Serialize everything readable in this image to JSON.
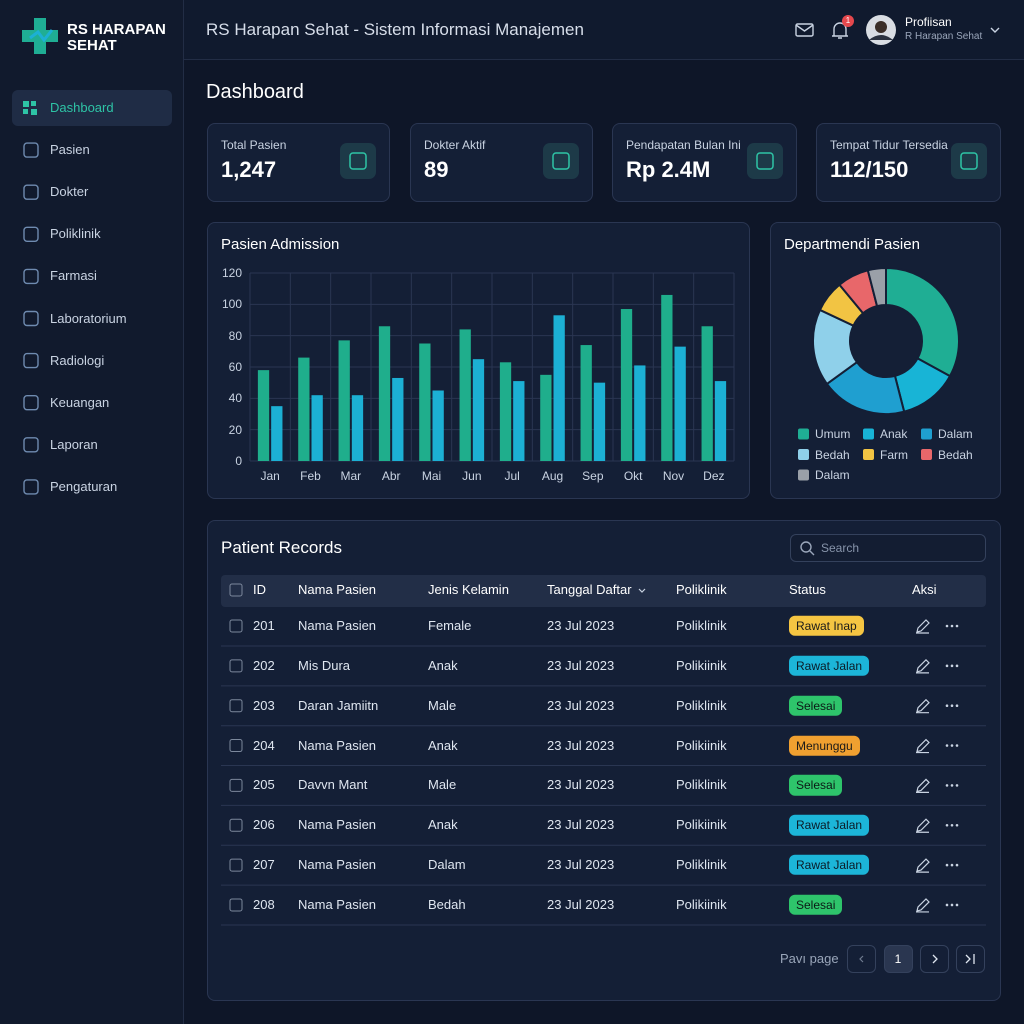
{
  "brand": "RS HARAPAN SEHAT",
  "header": {
    "title": "RS Harapan Sehat - Sistem Informasi Manajemen",
    "notifications": 1,
    "user_name": "Profiisan",
    "user_org": "R Harapan Sehat"
  },
  "nav": [
    "Dashboard",
    "Pasien",
    "Dokter",
    "Poliklinik",
    "Farmasi",
    "Laboratorium",
    "Radiologi",
    "Keuangan",
    "Laporan",
    "Pengaturan"
  ],
  "page_title": "Dashboard",
  "stats": [
    {
      "label": "Total Pasien",
      "value": "1,247"
    },
    {
      "label": "Dokter Aktif",
      "value": "89"
    },
    {
      "label": "Pendapatan Bulan Ini",
      "value": "Rp 2.4M"
    },
    {
      "label": "Tempat Tidur Tersedia",
      "value": "112/150"
    }
  ],
  "chart_data": [
    {
      "type": "bar",
      "title": "Pasien Admission",
      "categories": [
        "Jan",
        "Feb",
        "Mar",
        "Abr",
        "Mai",
        "Jun",
        "Jul",
        "Aug",
        "Sep",
        "Okt",
        "Nov",
        "Dez"
      ],
      "series": [
        {
          "color": "#1fae8c",
          "values": [
            58,
            66,
            77,
            86,
            75,
            84,
            63,
            55,
            74,
            97,
            106,
            86
          ]
        },
        {
          "color": "#1cb0d4",
          "values": [
            35,
            42,
            42,
            53,
            45,
            65,
            51,
            93,
            50,
            61,
            73,
            51
          ]
        }
      ],
      "ylim": [
        0,
        120
      ],
      "yticks": [
        0,
        20,
        40,
        60,
        80,
        100,
        120
      ],
      "grid": true
    },
    {
      "type": "pie",
      "title": "Departmendi Pasien",
      "categories": [
        "Umum",
        "Anak",
        "Dalam",
        "Bedah",
        "Farm",
        "Bedah",
        "Dalam"
      ],
      "values": [
        33,
        13,
        19,
        17,
        7,
        7,
        4
      ],
      "colors": [
        "#1fae94",
        "#18b4d6",
        "#1f9fd0",
        "#8fd0ea",
        "#f2c443",
        "#e8676a",
        "#9aa0a8"
      ],
      "legend": "bottom"
    }
  ],
  "table": {
    "title": "Patient Records",
    "search_placeholder": "Search",
    "columns": [
      "ID",
      "Nama Pasien",
      "Jenis Kelamin",
      "Tanggal Daftar",
      "Poliklinik",
      "Status",
      "Aksi"
    ],
    "rows": [
      [
        201,
        "Nama Pasien",
        "Female",
        "23 Jul 2023",
        "Poliklinik",
        "Rawat Inap"
      ],
      [
        202,
        "Mis Dura",
        "Anak",
        "23 Jul 2023",
        "Polikiinik",
        "Rawat Jalan"
      ],
      [
        203,
        "Daran Jamiitn",
        "Male",
        "23 Jul 2023",
        "Poliklinik",
        "Selesai"
      ],
      [
        204,
        "Nama Pasien",
        "Anak",
        "23 Jul 2023",
        "Polikiinik",
        "Menunggu"
      ],
      [
        205,
        "Davvn Mant",
        "Male",
        "23 Jul 2023",
        "Poliklinik",
        "Selesai"
      ],
      [
        206,
        "Nama Pasien",
        "Anak",
        "23 Jul 2023",
        "Polikiinik",
        "Rawat Jalan"
      ],
      [
        207,
        "Nama Pasien",
        "Dalam",
        "23 Jul 2023",
        "Poliklinik",
        "Rawat Jalan"
      ],
      [
        208,
        "Nama Pasien",
        "Bedah",
        "23 Jul 2023",
        "Polikiinik",
        "Selesai"
      ]
    ]
  },
  "pagination": {
    "label": "Pavı page",
    "current": 1
  }
}
